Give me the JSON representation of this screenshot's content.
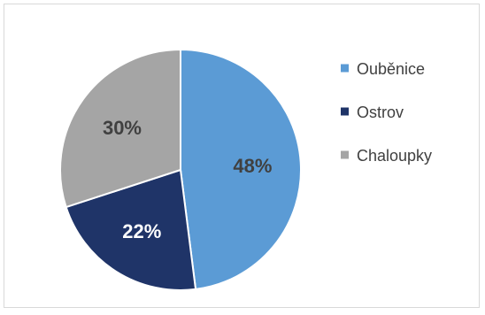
{
  "chart_data": {
    "type": "pie",
    "categories": [
      "Ouběnice",
      "Ostrov",
      "Chaloupky"
    ],
    "values": [
      48,
      22,
      30
    ],
    "labels": [
      "48%",
      "22%",
      "30%"
    ],
    "colors": [
      "#5b9bd5",
      "#1f3468",
      "#a5a5a5"
    ],
    "label_colors": [
      "#404040",
      "#ffffff",
      "#404040"
    ],
    "legend_position": "right",
    "title": ""
  }
}
